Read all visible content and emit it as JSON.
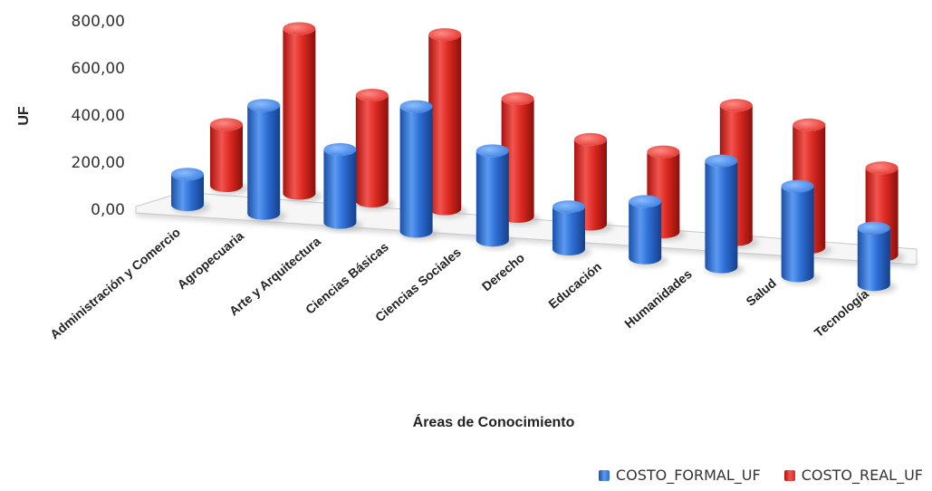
{
  "chart_data": {
    "type": "bar",
    "style": "3D clustered cylinders",
    "categories": [
      "Administración y Comercio",
      "Agropecuaria",
      "Arte y Arquitectura",
      "Ciencias Básicas",
      "Ciencias Sociales",
      "Derecho",
      "Educación",
      "Humanidades",
      "Salud",
      "Tecnología"
    ],
    "series": [
      {
        "name": "COSTO_FORMAL_UF",
        "color": "#2e6fd6",
        "values": [
          130,
          460,
          310,
          530,
          380,
          180,
          240,
          450,
          380,
          240
        ]
      },
      {
        "name": "COSTO_REAL_UF",
        "color": "#e02a24",
        "values": [
          260,
          700,
          450,
          740,
          500,
          360,
          340,
          570,
          520,
          370
        ]
      }
    ],
    "xlabel": "Áreas de Conocimiento",
    "ylabel": "UF",
    "ylim": [
      0,
      800
    ],
    "yticks": [
      "0,00",
      "200,00",
      "400,00",
      "600,00",
      "800,00"
    ],
    "grid": false,
    "legend": "bottom-right"
  }
}
